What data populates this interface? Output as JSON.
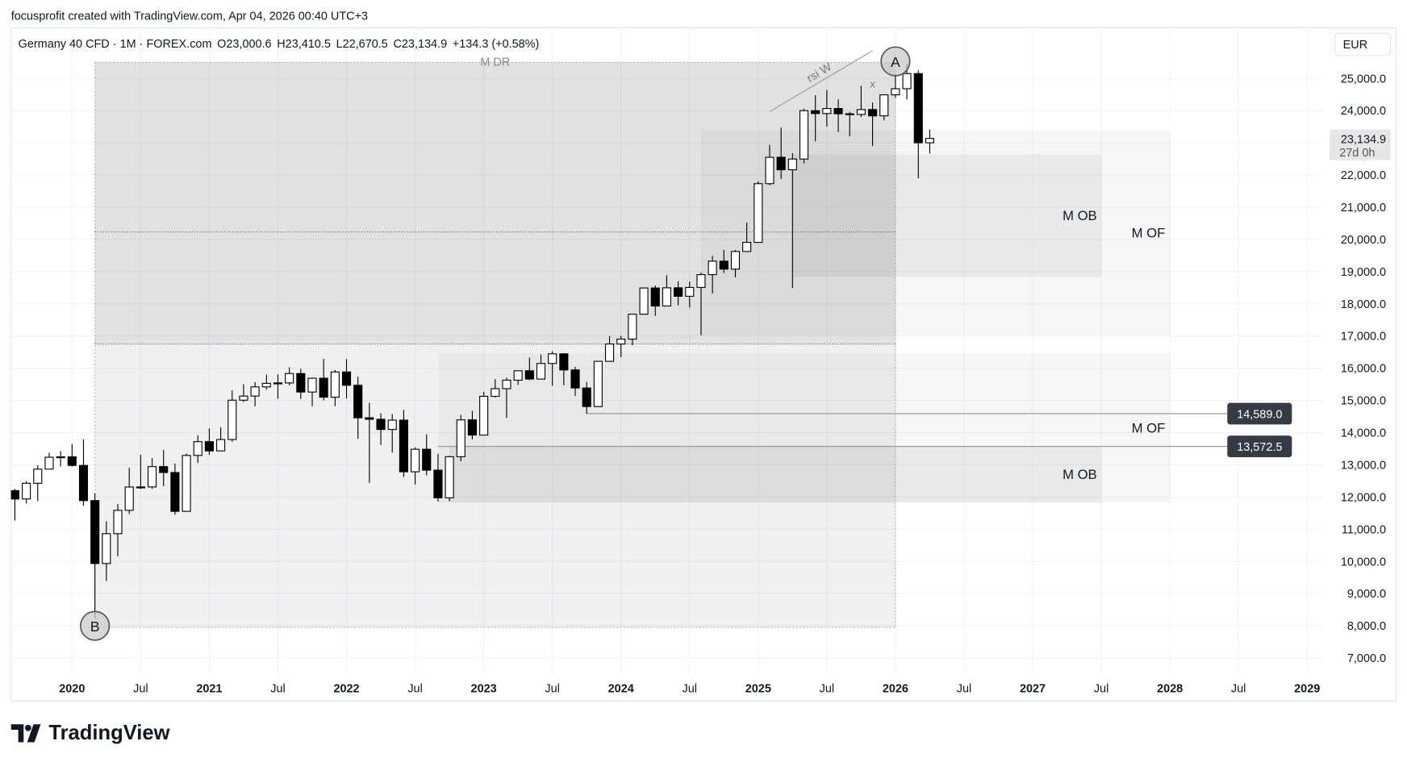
{
  "caption": "focusprofit created with TradingView.com, Apr 04, 2026 00:40 UTC+3",
  "brand": "TradingView",
  "chart_data": {
    "type": "candlestick",
    "symbol": "Germany 40 CFD · 1M · FOREX.com",
    "legend": [
      "O23,000.6",
      "H23,410.5",
      "L22,670.5",
      "C23,134.9",
      "+134.3 (+0.58%)"
    ],
    "currency": "EUR",
    "grid": true,
    "up_color": "#ffffff",
    "down_color": "#000000",
    "border_color": "#000000",
    "x": [
      "2019-08",
      "2019-09",
      "2019-10",
      "2019-11",
      "2019-12",
      "2020-01",
      "2020-02",
      "2020-03",
      "2020-04",
      "2020-05",
      "2020-06",
      "2020-07",
      "2020-08",
      "2020-09",
      "2020-10",
      "2020-11",
      "2020-12",
      "2021-01",
      "2021-02",
      "2021-03",
      "2021-04",
      "2021-05",
      "2021-06",
      "2021-07",
      "2021-08",
      "2021-09",
      "2021-10",
      "2021-11",
      "2021-12",
      "2022-01",
      "2022-02",
      "2022-03",
      "2022-04",
      "2022-05",
      "2022-06",
      "2022-07",
      "2022-08",
      "2022-09",
      "2022-10",
      "2022-11",
      "2022-12",
      "2023-01",
      "2023-02",
      "2023-03",
      "2023-04",
      "2023-05",
      "2023-06",
      "2023-07",
      "2023-08",
      "2023-09",
      "2023-10",
      "2023-11",
      "2023-12",
      "2024-01",
      "2024-02",
      "2024-03",
      "2024-04",
      "2024-05",
      "2024-06",
      "2024-07",
      "2024-08",
      "2024-09",
      "2024-10",
      "2024-11",
      "2024-12",
      "2025-01",
      "2025-02",
      "2025-03",
      "2025-04",
      "2025-05",
      "2025-06",
      "2025-07",
      "2025-08",
      "2025-09",
      "2025-10",
      "2025-11",
      "2025-12",
      "2026-01",
      "2026-02",
      "2026-03",
      "2026-04"
    ],
    "open": [
      12200,
      11939,
      12428,
      12867,
      13236,
      13249,
      12981,
      11890,
      9936,
      10862,
      11587,
      12311,
      12313,
      12945,
      12761,
      11556,
      13291,
      13719,
      13433,
      13786,
      15008,
      15136,
      15421,
      15531,
      15544,
      15835,
      15261,
      15689,
      15100,
      15885,
      15471,
      14461,
      14415,
      14098,
      14388,
      12784,
      13484,
      12835,
      11976,
      13253,
      14397,
      13924,
      15128,
      15365,
      15629,
      15922,
      15664,
      16148,
      16447,
      15947,
      15387,
      14810,
      16215,
      16752,
      16904,
      17678,
      18492,
      17932,
      18498,
      18235,
      18509,
      18907,
      19325,
      19078,
      19626,
      19909,
      21732,
      22551,
      22163,
      22497,
      23997,
      23909,
      24065,
      23902,
      23881,
      24033,
      23837,
      24490,
      24680,
      25150,
      23000.6
    ],
    "high": [
      12250,
      12494,
      12986,
      13374,
      13425,
      13640,
      13795,
      12114,
      11250,
      11781,
      12913,
      13314,
      13209,
      13461,
      13043,
      13349,
      13920,
      14131,
      14169,
      15312,
      15502,
      15568,
      15803,
      15811,
      16030,
      15981,
      15715,
      16290,
      15945,
      16285,
      15737,
      14925,
      14605,
      14575,
      14709,
      13546,
      13947,
      13342,
      13283,
      14550,
      14676,
      15269,
      15659,
      15706,
      15922,
      16332,
      16427,
      16528,
      16470,
      16043,
      15575,
      16215,
      17003,
      17006,
      17678,
      18492,
      18567,
      18892,
      18700,
      18690,
      18970,
      19491,
      19675,
      19674,
      20523,
      21800,
      22935,
      23476,
      22680,
      24060,
      24479,
      24639,
      24350,
      23960,
      24771,
      24250,
      24490,
      25130,
      25450,
      25250,
      23410.5
    ],
    "low": [
      11270,
      11796,
      11874,
      12867,
      12948,
      12948,
      11725,
      8255,
      9393,
      10160,
      11468,
      12253,
      12253,
      12339,
      11450,
      11556,
      13058,
      13311,
      13427,
      13715,
      14946,
      14816,
      15338,
      15050,
      15470,
      15048,
      14819,
      15000,
      14820,
      15060,
      13808,
      12439,
      13618,
      13380,
      12618,
      12390,
      12675,
      11863,
      11869,
      13110,
      13792,
      13924,
      15092,
      14458,
      15483,
      15629,
      15664,
      15456,
      15469,
      15138,
      14589,
      14810,
      16215,
      16346,
      16713,
      17678,
      17626,
      17932,
      17951,
      17883,
      17024,
      18323,
      18957,
      18820,
      19626,
      19909,
      21681,
      21877,
      18490,
      22360,
      23050,
      23500,
      23335,
      23200,
      23800,
      22900,
      23700,
      24400,
      24350,
      21900,
      22670.5
    ],
    "close": [
      11939,
      12428,
      12867,
      13236,
      13249,
      12981,
      11890,
      9936,
      10862,
      11587,
      12311,
      12313,
      12945,
      12761,
      11556,
      13291,
      13719,
      13433,
      13786,
      15008,
      15136,
      15421,
      15531,
      15544,
      15835,
      15261,
      15689,
      15100,
      15885,
      15471,
      14461,
      14415,
      14098,
      14388,
      12784,
      13484,
      12835,
      11976,
      13253,
      14397,
      13924,
      15128,
      15365,
      15629,
      15922,
      15664,
      16148,
      16447,
      15947,
      15387,
      14810,
      16215,
      16752,
      16904,
      17678,
      18492,
      17932,
      18498,
      18235,
      18509,
      18907,
      19325,
      19078,
      19626,
      19909,
      21732,
      22551,
      22163,
      22497,
      23997,
      23909,
      24065,
      23902,
      23881,
      24033,
      23837,
      24490,
      24680,
      25150,
      23000.6,
      23134.9
    ],
    "ylim": [
      6500,
      26600
    ],
    "yticks": [
      {
        "value": 7000,
        "label": "7,000.0"
      },
      {
        "value": 8000,
        "label": "8,000.0"
      },
      {
        "value": 9000,
        "label": "9,000.0"
      },
      {
        "value": 10000,
        "label": "10,000.0"
      },
      {
        "value": 11000,
        "label": "11,000.0"
      },
      {
        "value": 12000,
        "label": "12,000.0"
      },
      {
        "value": 13000,
        "label": "13,000.0"
      },
      {
        "value": 14000,
        "label": "14,000.0"
      },
      {
        "value": 15000,
        "label": "15,000.0"
      },
      {
        "value": 16000,
        "label": "16,000.0"
      },
      {
        "value": 17000,
        "label": "17,000.0"
      },
      {
        "value": 18000,
        "label": "18,000.0"
      },
      {
        "value": 19000,
        "label": "19,000.0"
      },
      {
        "value": 20000,
        "label": "20,000.0"
      },
      {
        "value": 21000,
        "label": "21,000.0"
      },
      {
        "value": 22000,
        "label": "22,000.0"
      },
      {
        "value": 23000,
        "label": "23,000.0"
      },
      {
        "value": 24000,
        "label": "24,000.0"
      },
      {
        "value": 25000,
        "label": "25,000.0"
      }
    ],
    "xticks": [
      {
        "value": "2020-01",
        "label": "2020"
      },
      {
        "value": "2020-07",
        "label": "Jul"
      },
      {
        "value": "2021-01",
        "label": "2021"
      },
      {
        "value": "2021-07",
        "label": "Jul"
      },
      {
        "value": "2022-01",
        "label": "2022"
      },
      {
        "value": "2022-07",
        "label": "Jul"
      },
      {
        "value": "2023-01",
        "label": "2023"
      },
      {
        "value": "2023-07",
        "label": "Jul"
      },
      {
        "value": "2024-01",
        "label": "2024"
      },
      {
        "value": "2024-07",
        "label": "Jul"
      },
      {
        "value": "2025-01",
        "label": "2025"
      },
      {
        "value": "2025-07",
        "label": "Jul"
      },
      {
        "value": "2026-01",
        "label": "2026"
      },
      {
        "value": "2026-07",
        "label": "Jul"
      },
      {
        "value": "2027-01",
        "label": "2027"
      },
      {
        "value": "2027-07",
        "label": "Jul"
      },
      {
        "value": "2028-01",
        "label": "2028"
      },
      {
        "value": "2028-07",
        "label": "Jul"
      },
      {
        "value": "2029-01",
        "label": "2029"
      }
    ],
    "zones": [
      {
        "label": "M DR",
        "label_position": "top",
        "start": "2020-03",
        "end": "2026-01",
        "top": 25500,
        "bottom": 7950,
        "color": "rgba(120,120,120,0.11)"
      },
      {
        "start": "2020-03",
        "end": "2026-01",
        "top": 25500,
        "bottom": 16750,
        "color": "rgba(120,120,120,0.13)"
      },
      {
        "label": "M OF",
        "label_position": "right",
        "start": "2024-08",
        "end": "2028-01",
        "top": 23390,
        "bottom": 17010,
        "color": "rgba(140,140,140,0.08)"
      },
      {
        "label": "M OB",
        "label_position": "right",
        "start": "2025-04",
        "end": "2027-07",
        "top": 22640,
        "bottom": 18840,
        "color": "rgba(120,120,120,0.1)"
      },
      {
        "label": "M OF",
        "label_position": "right",
        "start": "2022-09",
        "end": "2028-01",
        "top": 16460,
        "bottom": 11830,
        "color": "rgba(140,140,140,0.08)"
      },
      {
        "label": "M OB",
        "label_position": "right",
        "start": "2022-10",
        "end": "2027-07",
        "top": 13575,
        "bottom": 11830,
        "color": "rgba(120,120,120,0.1)"
      }
    ],
    "dotted_lines": [
      {
        "value": 20230,
        "start": "2020-03",
        "end": "2026-01"
      },
      {
        "value": 16750,
        "start": "2020-03",
        "end": "2026-01"
      }
    ],
    "levels": [
      {
        "value": 14589.0,
        "label": "14,589.0",
        "start": "2023-10"
      },
      {
        "value": 13572.5,
        "label": "13,572.5",
        "start": "2022-09"
      }
    ],
    "markers": [
      {
        "label": "A",
        "x": "2026-01",
        "y": 25530
      },
      {
        "label": "B",
        "x": "2020-03",
        "y": 8000
      }
    ],
    "trendlines": [
      {
        "label": "rsi W",
        "start": "2025-02",
        "start_value": 23970,
        "end": "2025-11",
        "end_value": 25860
      }
    ],
    "texts": [
      {
        "label": "x",
        "x": "2025-11",
        "y": 24720
      }
    ],
    "last_price": {
      "value": 23134.9,
      "label": "23,134.9"
    },
    "countdown": "27d 0h"
  }
}
